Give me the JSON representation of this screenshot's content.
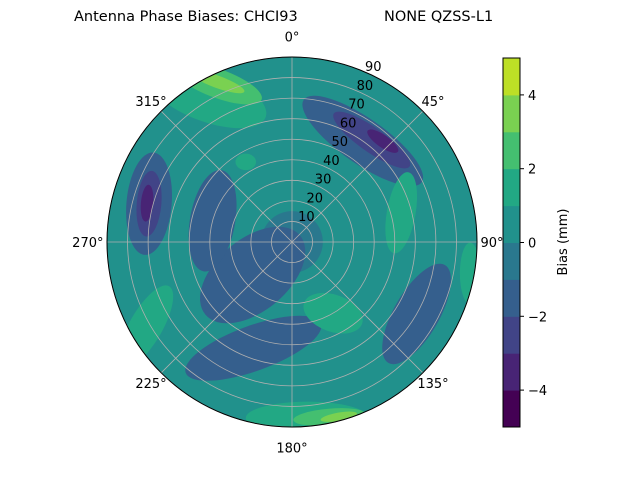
{
  "chart_data": {
    "type": "polar-contour",
    "title": "Antenna Phase Biases: CHCI93",
    "subtitle": "NONE QZSS-L1",
    "angle_ticks": [
      "0°",
      "45°",
      "90°",
      "135°",
      "180°",
      "225°",
      "270°",
      "315°"
    ],
    "radial_ticks": [
      "10",
      "20",
      "30",
      "40",
      "50",
      "60",
      "70",
      "80",
      "90"
    ],
    "radial_range": [
      0,
      90
    ],
    "grid": true,
    "colorbar": {
      "label": "Bias (mm)",
      "range": [
        -5,
        5
      ],
      "levels": [
        -5,
        -4,
        -3,
        -2,
        -1,
        0,
        1,
        2,
        3,
        4,
        5
      ],
      "ticks": [
        "−4",
        "−2",
        "0",
        "2",
        "4"
      ],
      "tick_values": [
        -4,
        -2,
        0,
        2,
        4
      ],
      "colormap": "viridis",
      "colors": [
        "#440154",
        "#482475",
        "#414487",
        "#355f8d",
        "#2a788e",
        "#21918c",
        "#22a884",
        "#44bf70",
        "#7ad151",
        "#bddf26"
      ]
    },
    "background_level": 0.5,
    "regions": [
      {
        "az": 0,
        "zen": 0,
        "w": 30,
        "h": 30,
        "rot": 0,
        "level": -0.5
      },
      {
        "az": 230,
        "zen": 25,
        "w": 60,
        "h": 35,
        "rot": -40,
        "level": -1.5
      },
      {
        "az": 200,
        "zen": 55,
        "w": 70,
        "h": 22,
        "rot": -20,
        "level": -1.5
      },
      {
        "az": 285,
        "zen": 40,
        "w": 22,
        "h": 50,
        "rot": 10,
        "level": -1.5
      },
      {
        "az": 120,
        "zen": 70,
        "w": 22,
        "h": 55,
        "rot": 30,
        "level": -1.5
      },
      {
        "az": 35,
        "zen": 60,
        "w": 22,
        "h": 70,
        "rot": -55,
        "level": -1.5
      },
      {
        "az": 38,
        "zen": 63,
        "w": 12,
        "h": 45,
        "rot": -55,
        "level": -2.5
      },
      {
        "az": 42,
        "zen": 66,
        "w": 6,
        "h": 18,
        "rot": -55,
        "level": -3.5
      },
      {
        "az": 285,
        "zen": 72,
        "w": 22,
        "h": 50,
        "rot": 5,
        "level": -1.5
      },
      {
        "az": 285,
        "zen": 72,
        "w": 12,
        "h": 32,
        "rot": 5,
        "level": -2.5
      },
      {
        "az": 285,
        "zen": 73,
        "w": 6,
        "h": 18,
        "rot": 5,
        "level": -3.5
      },
      {
        "az": 75,
        "zen": 55,
        "w": 14,
        "h": 40,
        "rot": 10,
        "level": 1.5
      },
      {
        "az": 330,
        "zen": 82,
        "w": 25,
        "h": 60,
        "rot": -70,
        "level": 1.5
      },
      {
        "az": 335,
        "zen": 85,
        "w": 14,
        "h": 45,
        "rot": -70,
        "level": 2.5
      },
      {
        "az": 335,
        "zen": 86,
        "w": 6,
        "h": 28,
        "rot": -70,
        "level": 3.5
      },
      {
        "az": 240,
        "zen": 82,
        "w": 16,
        "h": 45,
        "rot": 30,
        "level": 1.5
      },
      {
        "az": 175,
        "zen": 86,
        "w": 16,
        "h": 60,
        "rot": 90,
        "level": 1.5
      },
      {
        "az": 168,
        "zen": 87,
        "w": 8,
        "h": 35,
        "rot": 85,
        "level": 2.5
      },
      {
        "az": 165,
        "zen": 88,
        "w": 4,
        "h": 18,
        "rot": 80,
        "level": 3.5
      },
      {
        "az": 150,
        "zen": 40,
        "w": 30,
        "h": 18,
        "rot": 20,
        "level": 1.5
      },
      {
        "az": 330,
        "zen": 45,
        "w": 10,
        "h": 8,
        "rot": 0,
        "level": 1.5
      },
      {
        "az": 100,
        "zen": 88,
        "w": 10,
        "h": 30,
        "rot": 0,
        "level": 1.5
      }
    ]
  }
}
